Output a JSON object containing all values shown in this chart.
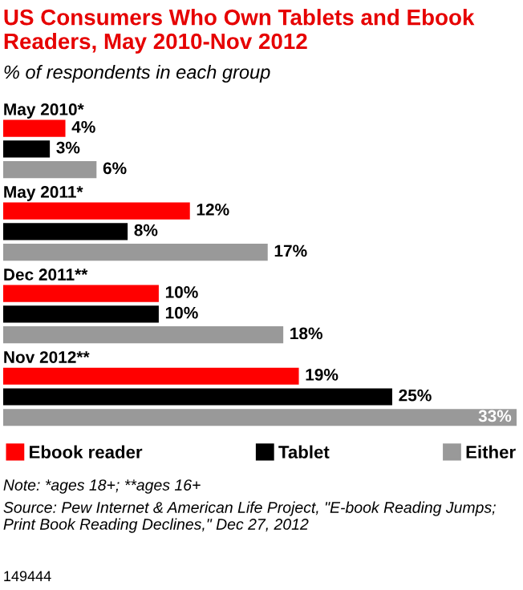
{
  "chart_data": {
    "type": "bar",
    "orientation": "horizontal",
    "title": "US Consumers Who Own Tablets and Ebook Readers, May 2010-Nov 2012",
    "subtitle": "% of respondents in each group",
    "categories": [
      "May 2010*",
      "May 2011*",
      "Dec 2011**",
      "Nov 2012**"
    ],
    "series": [
      {
        "name": "Ebook reader",
        "color": "#ff0000",
        "values": [
          4,
          12,
          10,
          19
        ],
        "value_labels": [
          "4%",
          "12%",
          "10%",
          "19%"
        ]
      },
      {
        "name": "Tablet",
        "color": "#000000",
        "values": [
          3,
          8,
          10,
          25
        ],
        "value_labels": [
          "3%",
          "8%",
          "10%",
          "25%"
        ]
      },
      {
        "name": "Either",
        "color": "#999999",
        "values": [
          6,
          17,
          18,
          33
        ],
        "value_labels": [
          "6%",
          "17%",
          "18%",
          "33%"
        ]
      }
    ],
    "legend": "bottom",
    "annotations": [
      "Note: *ages 18+; **ages 16+",
      "Source: Pew Internet & American Life Project, \"E-book Reading Jumps; Print Book Reading Declines,\" Dec 27, 2012",
      "149444"
    ]
  }
}
